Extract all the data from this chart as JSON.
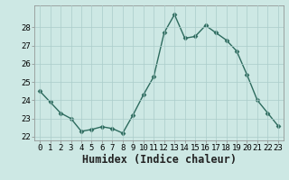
{
  "xlabel": "Humidex (Indice chaleur)",
  "x_values": [
    0,
    1,
    2,
    3,
    4,
    5,
    6,
    7,
    8,
    9,
    10,
    11,
    12,
    13,
    14,
    15,
    16,
    17,
    18,
    19,
    20,
    21,
    22,
    23
  ],
  "y_values": [
    24.5,
    23.9,
    23.3,
    23.0,
    22.3,
    22.4,
    22.55,
    22.45,
    22.2,
    23.2,
    24.3,
    25.3,
    27.7,
    28.7,
    27.4,
    27.5,
    28.1,
    27.7,
    27.3,
    26.7,
    25.4,
    24.0,
    23.3,
    22.6
  ],
  "line_color": "#2d6b5e",
  "marker": "D",
  "markersize": 2.5,
  "linewidth": 1.0,
  "bg_color": "#cde8e4",
  "grid_color": "#aaccca",
  "ylim": [
    21.8,
    29.2
  ],
  "yticks": [
    22,
    23,
    24,
    25,
    26,
    27,
    28
  ],
  "xticks": [
    0,
    1,
    2,
    3,
    4,
    5,
    6,
    7,
    8,
    9,
    10,
    11,
    12,
    13,
    14,
    15,
    16,
    17,
    18,
    19,
    20,
    21,
    22,
    23
  ],
  "tick_fontsize": 6.5,
  "xlabel_fontsize": 8.5,
  "xlabel_fontweight": "bold",
  "spine_color": "#888888"
}
